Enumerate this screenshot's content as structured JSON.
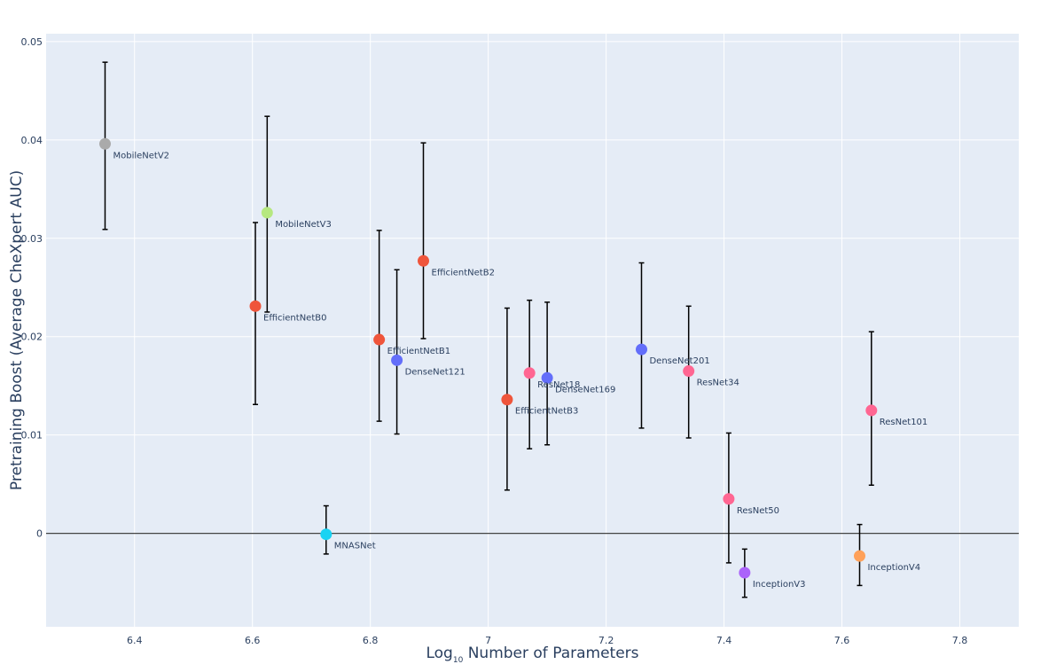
{
  "chart_data": {
    "type": "scatter",
    "xlabel_main": "Log",
    "xlabel_sub": "10",
    "xlabel_rest": " Number of Parameters",
    "ylabel": "Pretraining Boost (Average CheXpert AUC)",
    "xlim": [
      6.25,
      7.9
    ],
    "ylim": [
      -0.0095,
      0.0508
    ],
    "x_ticks": [
      6.4,
      6.6,
      6.8,
      7.0,
      7.2,
      7.4,
      7.6,
      7.8
    ],
    "x_tick_labels": [
      "6.4",
      "6.6",
      "6.8",
      "7",
      "7.2",
      "7.4",
      "7.6",
      "7.8"
    ],
    "y_ticks": [
      0,
      0.01,
      0.02,
      0.03,
      0.04,
      0.05
    ],
    "y_tick_labels": [
      "0",
      "0.01",
      "0.02",
      "0.03",
      "0.04",
      "0.05"
    ],
    "grid": true,
    "plot_bg": "#e5ecf6",
    "points": [
      {
        "name": "MobileNetV2",
        "x": 6.35,
        "y": 0.0396,
        "lo": 0.0309,
        "hi": 0.0479,
        "color": "#aaaaaa"
      },
      {
        "name": "MobileNetV3",
        "x": 6.625,
        "y": 0.0326,
        "lo": 0.0225,
        "hi": 0.0424,
        "color": "#b6e880"
      },
      {
        "name": "EfficientNetB0",
        "x": 6.605,
        "y": 0.0231,
        "lo": 0.0131,
        "hi": 0.0316,
        "color": "#ef553b"
      },
      {
        "name": "EfficientNetB1",
        "x": 6.815,
        "y": 0.0197,
        "lo": 0.0114,
        "hi": 0.0308,
        "color": "#ef553b"
      },
      {
        "name": "DenseNet121",
        "x": 6.845,
        "y": 0.0176,
        "lo": 0.0101,
        "hi": 0.0268,
        "color": "#636efa"
      },
      {
        "name": "EfficientNetB2",
        "x": 6.89,
        "y": 0.0277,
        "lo": 0.0198,
        "hi": 0.0397,
        "color": "#ef553b"
      },
      {
        "name": "MNASNet",
        "x": 6.725,
        "y": -0.0001,
        "lo": -0.0021,
        "hi": 0.0028,
        "color": "#00cc96"
      },
      {
        "name": "EfficientNetB3",
        "x": 7.032,
        "y": 0.0136,
        "lo": 0.0044,
        "hi": 0.0229,
        "color": "#ef553b"
      },
      {
        "name": "ResNet18",
        "x": 7.07,
        "y": 0.0163,
        "lo": 0.0086,
        "hi": 0.0237,
        "color": "#ff6692"
      },
      {
        "name": "DenseNet169",
        "x": 7.1,
        "y": 0.0158,
        "lo": 0.009,
        "hi": 0.0235,
        "color": "#636efa"
      },
      {
        "name": "DenseNet201",
        "x": 7.26,
        "y": 0.0187,
        "lo": 0.0107,
        "hi": 0.0275,
        "color": "#636efa"
      },
      {
        "name": "ResNet34",
        "x": 7.34,
        "y": 0.0165,
        "lo": 0.0097,
        "hi": 0.0231,
        "color": "#ff6692"
      },
      {
        "name": "ResNet50",
        "x": 7.408,
        "y": 0.0035,
        "lo": -0.003,
        "hi": 0.0102,
        "color": "#ff6692"
      },
      {
        "name": "InceptionV3",
        "x": 7.435,
        "y": -0.004,
        "lo": -0.0065,
        "hi": -0.0016,
        "color": "#ab63fa"
      },
      {
        "name": "InceptionV4",
        "x": 7.63,
        "y": -0.0023,
        "lo": -0.0053,
        "hi": 0.0009,
        "color": "#ffa15a"
      },
      {
        "name": "ResNet101",
        "x": 7.65,
        "y": 0.0125,
        "lo": 0.0049,
        "hi": 0.0205,
        "color": "#ff6692"
      }
    ],
    "mnasnet_color": "#19d3f3"
  }
}
